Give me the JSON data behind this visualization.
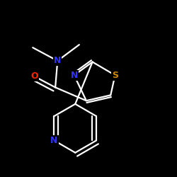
{
  "background_color": "#000000",
  "bond_color": "#ffffff",
  "atom_colors": {
    "N": "#3333ff",
    "O": "#ff2200",
    "S": "#cc8800"
  },
  "figsize": [
    2.5,
    2.5
  ],
  "dpi": 100,
  "lw": 1.6,
  "fs": 9
}
